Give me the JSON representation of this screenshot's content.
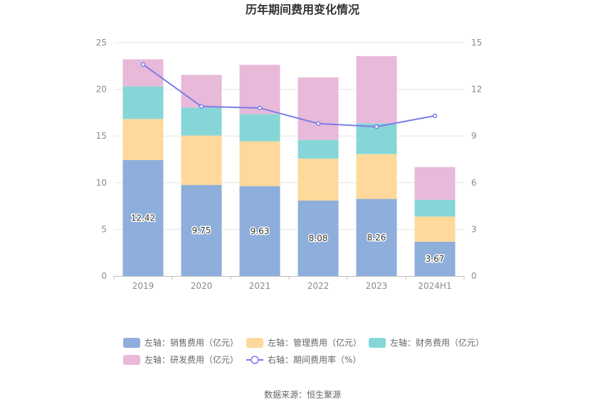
{
  "chart_data": {
    "type": "bar",
    "title": "历年期间费用变化情况",
    "categories": [
      "2019",
      "2020",
      "2021",
      "2022",
      "2023",
      "2024H1"
    ],
    "stacked": true,
    "ylim_left": [
      0,
      25
    ],
    "yticks_left": [
      "0",
      "5",
      "10",
      "15",
      "20",
      "25"
    ],
    "ylim_right": [
      0,
      15
    ],
    "yticks_right": [
      "0",
      "3",
      "6",
      "9",
      "12",
      "15"
    ],
    "grid": true,
    "legend_position": "bottom",
    "series": [
      {
        "name": "左轴：销售费用（亿元）",
        "axis": "left",
        "color": "#8eaedb",
        "values": [
          12.42,
          9.75,
          9.63,
          8.08,
          8.26,
          3.67
        ],
        "labels": [
          "12.42",
          "9.75",
          "9.63",
          "8.08",
          "8.26",
          "3.67"
        ]
      },
      {
        "name": "左轴：管理费用（亿元）",
        "axis": "left",
        "color": "#fed99b",
        "values": [
          4.4,
          5.3,
          4.8,
          4.5,
          4.8,
          2.7
        ]
      },
      {
        "name": "左轴：财务费用（亿元）",
        "axis": "left",
        "color": "#86d6d8",
        "values": [
          3.5,
          3.0,
          2.9,
          2.0,
          3.3,
          1.8
        ]
      },
      {
        "name": "左轴：研发费用（亿元）",
        "axis": "left",
        "color": "#e8b9d9",
        "values": [
          2.9,
          3.5,
          5.3,
          6.7,
          7.2,
          3.5
        ]
      },
      {
        "name": "右轴：期间费用率（%）",
        "axis": "right",
        "type": "line",
        "color": "#7b7de6",
        "values": [
          13.6,
          10.9,
          10.8,
          9.8,
          9.6,
          10.3
        ]
      }
    ],
    "source": "数据来源：恒生聚源"
  }
}
